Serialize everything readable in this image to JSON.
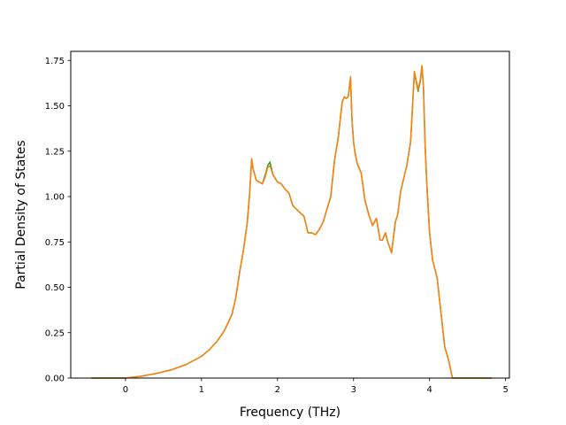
{
  "chart_data": {
    "type": "line",
    "title": "",
    "xlabel": "Frequency (THz)",
    "ylabel": "Partial Density of States",
    "xlim": [
      -0.72,
      5.05
    ],
    "ylim": [
      0,
      1.8
    ],
    "xticks": [
      0,
      1,
      2,
      3,
      4,
      5
    ],
    "xtick_labels": [
      "0",
      "1",
      "2",
      "3",
      "4",
      "5"
    ],
    "yticks": [
      0,
      0.25,
      0.5,
      0.75,
      1.0,
      1.25,
      1.5,
      1.75
    ],
    "ytick_labels": [
      "0.00",
      "0.25",
      "0.50",
      "0.75",
      "1.00",
      "1.25",
      "1.50",
      "1.75"
    ],
    "grid": false,
    "legend": false,
    "series": [
      {
        "color": "#2ca02c",
        "x": [
          -0.45,
          0.0,
          0.2,
          0.4,
          0.6,
          0.8,
          1.0,
          1.1,
          1.2,
          1.3,
          1.4,
          1.45,
          1.5,
          1.55,
          1.6,
          1.63,
          1.66,
          1.68,
          1.72,
          1.76,
          1.8,
          1.84,
          1.87,
          1.9,
          1.94,
          2.0,
          2.05,
          2.1,
          2.15,
          2.2,
          2.3,
          2.35,
          2.4,
          2.45,
          2.5,
          2.55,
          2.6,
          2.7,
          2.75,
          2.8,
          2.85,
          2.88,
          2.9,
          2.93,
          2.96,
          2.98,
          3.0,
          3.02,
          3.05,
          3.1,
          3.15,
          3.2,
          3.25,
          3.3,
          3.35,
          3.38,
          3.42,
          3.45,
          3.5,
          3.55,
          3.58,
          3.62,
          3.66,
          3.7,
          3.75,
          3.8,
          3.85,
          3.88,
          3.9,
          3.92,
          3.94,
          3.96,
          3.98,
          4.0,
          4.04,
          4.1,
          4.2,
          4.25,
          4.3,
          4.35,
          4.38,
          4.5,
          4.82
        ],
        "y": [
          0.0,
          0.0,
          0.01,
          0.025,
          0.045,
          0.075,
          0.12,
          0.155,
          0.2,
          0.26,
          0.35,
          0.44,
          0.58,
          0.7,
          0.85,
          1.0,
          1.2,
          1.15,
          1.09,
          1.08,
          1.07,
          1.12,
          1.17,
          1.19,
          1.12,
          1.08,
          1.07,
          1.04,
          1.02,
          0.95,
          0.91,
          0.89,
          0.8,
          0.8,
          0.79,
          0.82,
          0.86,
          1.0,
          1.2,
          1.33,
          1.52,
          1.55,
          1.54,
          1.55,
          1.65,
          1.42,
          1.3,
          1.24,
          1.18,
          1.13,
          0.98,
          0.9,
          0.84,
          0.88,
          0.76,
          0.76,
          0.8,
          0.75,
          0.69,
          0.86,
          0.9,
          1.03,
          1.1,
          1.17,
          1.3,
          1.68,
          1.58,
          1.64,
          1.72,
          1.6,
          1.3,
          1.1,
          0.95,
          0.8,
          0.65,
          0.55,
          0.17,
          0.1,
          0.0,
          0.0,
          0.0,
          0.0,
          0.0
        ]
      },
      {
        "color": "#ff7f0e",
        "x": [
          -0.45,
          0.0,
          0.2,
          0.4,
          0.6,
          0.8,
          1.0,
          1.1,
          1.2,
          1.3,
          1.4,
          1.45,
          1.5,
          1.55,
          1.6,
          1.63,
          1.66,
          1.68,
          1.72,
          1.76,
          1.8,
          1.84,
          1.87,
          1.9,
          1.94,
          2.0,
          2.05,
          2.1,
          2.15,
          2.2,
          2.3,
          2.35,
          2.4,
          2.45,
          2.5,
          2.55,
          2.6,
          2.7,
          2.75,
          2.8,
          2.85,
          2.88,
          2.9,
          2.93,
          2.96,
          2.98,
          3.0,
          3.02,
          3.05,
          3.1,
          3.15,
          3.2,
          3.25,
          3.3,
          3.35,
          3.38,
          3.42,
          3.45,
          3.5,
          3.55,
          3.58,
          3.62,
          3.66,
          3.7,
          3.75,
          3.8,
          3.85,
          3.88,
          3.9,
          3.92,
          3.94,
          3.96,
          3.98,
          4.0,
          4.04,
          4.1,
          4.2,
          4.25,
          4.3,
          4.35,
          4.38,
          4.5,
          4.82
        ],
        "y": [
          0.0,
          0.0,
          0.01,
          0.025,
          0.045,
          0.075,
          0.12,
          0.155,
          0.2,
          0.26,
          0.35,
          0.44,
          0.58,
          0.7,
          0.85,
          1.0,
          1.21,
          1.15,
          1.09,
          1.08,
          1.07,
          1.11,
          1.16,
          1.17,
          1.12,
          1.08,
          1.07,
          1.04,
          1.02,
          0.95,
          0.91,
          0.89,
          0.8,
          0.8,
          0.79,
          0.82,
          0.86,
          1.0,
          1.2,
          1.33,
          1.52,
          1.55,
          1.54,
          1.55,
          1.66,
          1.42,
          1.3,
          1.24,
          1.18,
          1.13,
          0.98,
          0.9,
          0.84,
          0.88,
          0.76,
          0.76,
          0.8,
          0.75,
          0.69,
          0.86,
          0.9,
          1.03,
          1.1,
          1.17,
          1.3,
          1.69,
          1.59,
          1.65,
          1.72,
          1.6,
          1.3,
          1.1,
          0.95,
          0.8,
          0.65,
          0.55,
          0.17,
          0.1,
          0.0,
          0.0,
          0.0,
          0.0,
          0.0
        ]
      }
    ]
  }
}
